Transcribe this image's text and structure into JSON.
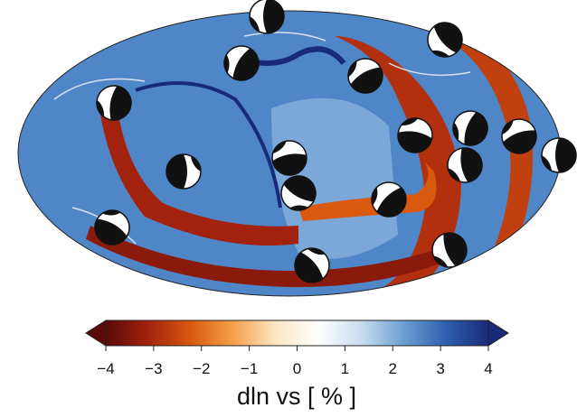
{
  "colorbar": {
    "label": "dln vs [ % ]",
    "lim": [
      -4,
      4
    ],
    "ticks": [
      {
        "value": -4,
        "label": "−4"
      },
      {
        "value": -3,
        "label": "−3"
      },
      {
        "value": -2,
        "label": "−2"
      },
      {
        "value": -1,
        "label": "−1"
      },
      0,
      1,
      2,
      3,
      4
    ],
    "colormap": [
      "#5a0a08",
      "#a3220e",
      "#d9590f",
      "#f5a04a",
      "#fde6c4",
      "#ffffff",
      "#c9ddf0",
      "#6d9fd2",
      "#2f5fae",
      "#1a2a7a"
    ]
  }
}
